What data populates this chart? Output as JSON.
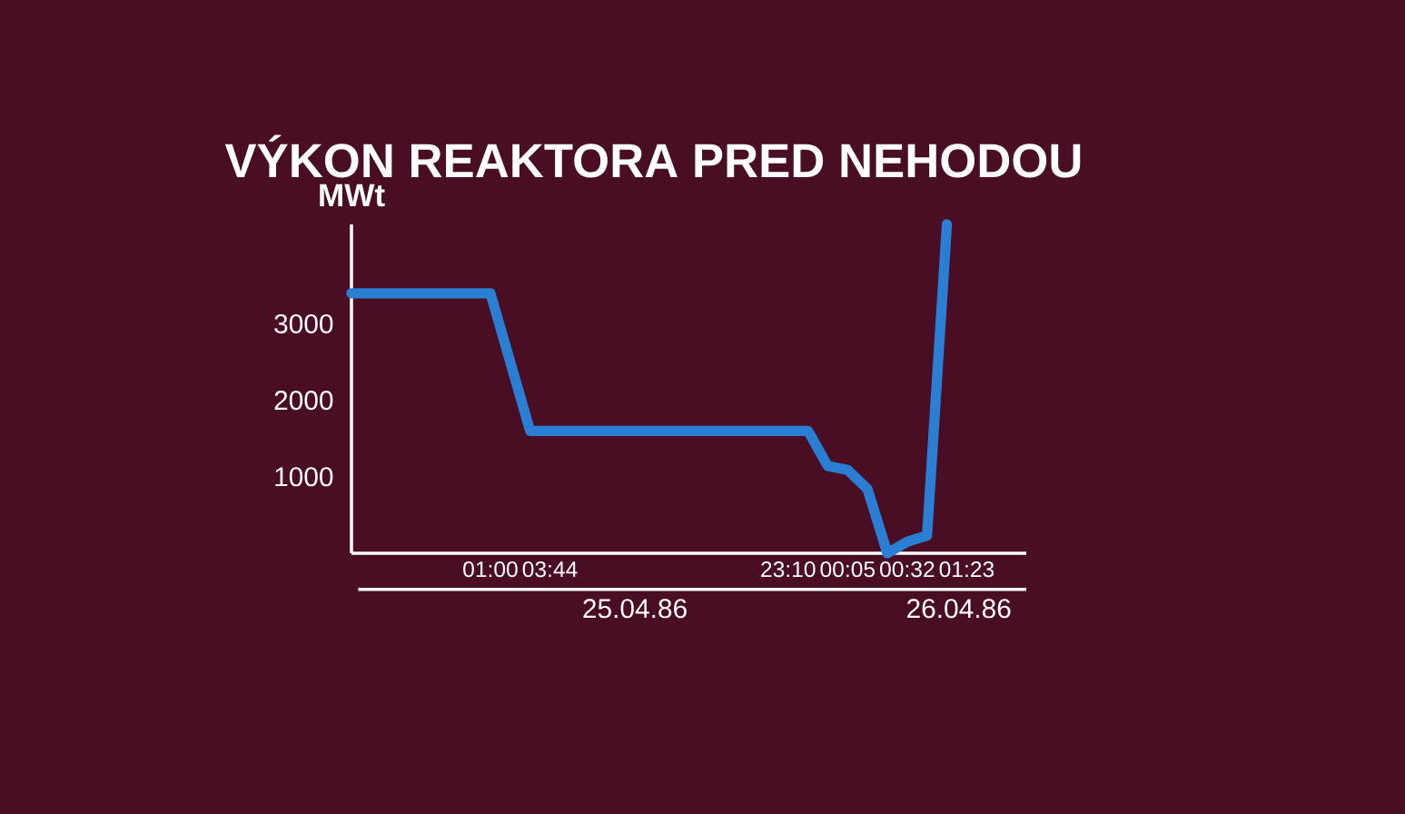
{
  "chart_data": {
    "type": "line",
    "title": "VÝKON REAKTORA PRED NEHODOU",
    "ylabel": "MWt",
    "annotations": [
      "25.04.86",
      "26.04.86"
    ],
    "categories": [
      null,
      null,
      null,
      null,
      null,
      null,
      null,
      "01:00",
      null,
      null,
      "03:44",
      null,
      null,
      null,
      null,
      null,
      null,
      null,
      null,
      null,
      null,
      null,
      "23:10",
      null,
      null,
      "00:05",
      null,
      null,
      "00:32",
      null,
      null,
      "01:23",
      null,
      null,
      null
    ],
    "values": [
      3400,
      3400,
      3400,
      3400,
      3400,
      3400,
      3400,
      3400,
      2500,
      1600,
      1600,
      1600,
      1600,
      1600,
      1600,
      1600,
      1600,
      1600,
      1600,
      1600,
      1600,
      1600,
      1600,
      1600,
      1140,
      1090,
      840,
      0,
      150,
      230,
      4300,
      null,
      null,
      null,
      null
    ],
    "color": "#2a7fd4",
    "ylim": [
      0,
      4300
    ],
    "yticks": [
      1000,
      2000,
      3000
    ]
  }
}
